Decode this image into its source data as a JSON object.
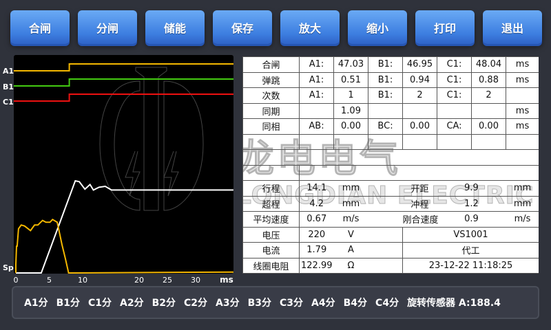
{
  "toolbar": {
    "buttons": [
      "合闸",
      "分闸",
      "储能",
      "保存",
      "放大",
      "缩小",
      "打印",
      "退出"
    ]
  },
  "watermark": {
    "cn": "龙电电气",
    "en": "LONGDIAN ELECTRIC"
  },
  "colors": {
    "A1": "#f5b800",
    "B1": "#44cc11",
    "C1": "#ee1111",
    "travel": "#ffffff",
    "current": "#f5b800",
    "button": "#3d7ee0"
  },
  "chart_data": {
    "type": "line",
    "xlabel": "ms",
    "x_ticks": [
      "0",
      "5",
      "10",
      "20",
      "25",
      "30"
    ],
    "xlim": [
      0,
      36.7
    ],
    "channel_labels": [
      "A1",
      "B1",
      "C1",
      "Sp"
    ],
    "digital": [
      {
        "name": "A1",
        "step_ms": 8.0
      },
      {
        "name": "B1",
        "step_ms": 8.0
      },
      {
        "name": "C1",
        "step_ms": 8.0
      }
    ],
    "series": [
      {
        "key": "travel",
        "x": [
          0,
          3.8,
          8.9,
          9.5,
          10.4,
          11.3,
          11.9,
          12.9,
          14.0,
          15.1,
          36.7
        ],
        "y": [
          0,
          0,
          100,
          99,
          91,
          96,
          90,
          93,
          94,
          90,
          90
        ]
      },
      {
        "key": "current",
        "x": [
          0,
          0,
          0.1,
          0.2,
          0.4,
          0.8,
          1.3,
          2.2,
          2.8,
          3.3,
          4.0,
          4.5,
          5.1,
          5.5,
          6.2,
          6.9,
          7.4,
          7.9,
          36.7
        ],
        "y": [
          0,
          9,
          29,
          29,
          48,
          52,
          51,
          46,
          52,
          52,
          57,
          55,
          55,
          58,
          55,
          31,
          16,
          0,
          1
        ]
      }
    ]
  },
  "table": {
    "rows": [
      [
        "合闸",
        "A1:",
        "47.03",
        "B1:",
        "46.95",
        "C1:",
        "48.04",
        "ms"
      ],
      [
        "弹跳",
        "A1:",
        "0.51",
        "B1:",
        "0.94",
        "C1:",
        "0.88",
        "ms"
      ],
      [
        "次数",
        "A1:",
        "1",
        "B1:",
        "2",
        "C1:",
        "2",
        ""
      ],
      [
        "同期",
        "",
        "1.09",
        "",
        "",
        "",
        "",
        "ms"
      ],
      [
        "同相",
        "AB:",
        "0.00",
        "BC:",
        "0.00",
        "CA:",
        "0.00",
        "ms"
      ]
    ],
    "motion": [
      {
        "label": "行程",
        "value": "14.1",
        "unit": "mm",
        "label2": "开距",
        "value2": "9.9",
        "unit2": "mm"
      },
      {
        "label": "超程",
        "value": "4.2",
        "unit": "mm",
        "label2": "冲程",
        "value2": "1.2",
        "unit2": "mm"
      },
      {
        "label": "平均速度",
        "value": "0.67",
        "unit": "m/s",
        "label2": "刚合速度",
        "value2": "0.9",
        "unit2": "m/s"
      }
    ],
    "info": [
      {
        "label": "电压",
        "value": "220",
        "unit": "V",
        "right": "VS1001"
      },
      {
        "label": "电流",
        "value": "1.79",
        "unit": "A",
        "right": "代工"
      },
      {
        "label": "线圈电阻",
        "value": "122.99",
        "unit": "Ω",
        "right": "23-12-22 11:18:25"
      }
    ]
  },
  "bottom": {
    "items": [
      "A1分",
      "B1分",
      "C1分",
      "A2分",
      "B2分",
      "C2分",
      "A3分",
      "B3分",
      "C3分",
      "A4分",
      "B4分",
      "C4分",
      "旋转传感器 A:188.4"
    ]
  }
}
